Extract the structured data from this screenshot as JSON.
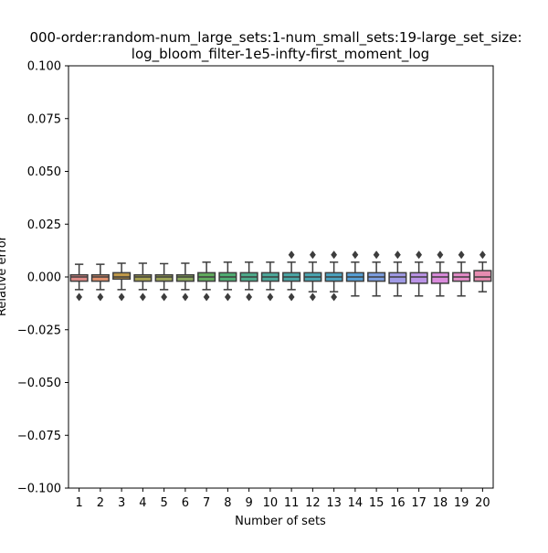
{
  "chart_data": {
    "type": "box",
    "title_line1": "000-order:random-num_large_sets:1-num_small_sets:19-large_set_size:",
    "title_line2": "log_bloom_filter-1e5-infty-first_moment_log",
    "xlabel": "Number of sets",
    "ylabel": "Relative error",
    "ylim": [
      -0.1,
      0.1
    ],
    "yticks": [
      -0.1,
      -0.075,
      -0.05,
      -0.025,
      0.0,
      0.025,
      0.05,
      0.075,
      0.1
    ],
    "ytick_labels": [
      "−0.100",
      "−0.075",
      "−0.050",
      "−0.025",
      "0.000",
      "0.025",
      "0.050",
      "0.075",
      "0.100"
    ],
    "categories": [
      "1",
      "2",
      "3",
      "4",
      "5",
      "6",
      "7",
      "8",
      "9",
      "10",
      "11",
      "12",
      "13",
      "14",
      "15",
      "16",
      "17",
      "18",
      "19",
      "20"
    ],
    "box_colors": [
      "#e08c88",
      "#e1916e",
      "#c29a49",
      "#a6a250",
      "#9ca457",
      "#8ba85d",
      "#61ac5e",
      "#4fae73",
      "#4dab8b",
      "#4ca99b",
      "#4aa7a6",
      "#4aa5b1",
      "#4ba2bf",
      "#57a0d6",
      "#7d9ee0",
      "#a09ae5",
      "#ba93e6",
      "#da8bdc",
      "#e48cc8",
      "#e68cb0"
    ],
    "line_color": "#3d3d3d",
    "boxes": [
      {
        "q1": -0.002,
        "median": 0.0,
        "q3": 0.001,
        "whislo": -0.006,
        "whishi": 0.006,
        "fliers": [
          -0.0095
        ]
      },
      {
        "q1": -0.002,
        "median": 0.0,
        "q3": 0.001,
        "whislo": -0.006,
        "whishi": 0.006,
        "fliers": [
          -0.0095
        ]
      },
      {
        "q1": -0.001,
        "median": 0.0,
        "q3": 0.002,
        "whislo": -0.006,
        "whishi": 0.0065,
        "fliers": [
          -0.0095
        ]
      },
      {
        "q1": -0.002,
        "median": 0.0,
        "q3": 0.001,
        "whislo": -0.006,
        "whishi": 0.0065,
        "fliers": [
          -0.0095
        ]
      },
      {
        "q1": -0.002,
        "median": 0.0,
        "q3": 0.001,
        "whislo": -0.006,
        "whishi": 0.0063,
        "fliers": [
          -0.0095
        ]
      },
      {
        "q1": -0.002,
        "median": 0.0,
        "q3": 0.001,
        "whislo": -0.006,
        "whishi": 0.0065,
        "fliers": [
          -0.0095
        ]
      },
      {
        "q1": -0.002,
        "median": 0.0,
        "q3": 0.002,
        "whislo": -0.006,
        "whishi": 0.007,
        "fliers": [
          -0.0095
        ]
      },
      {
        "q1": -0.002,
        "median": 0.0,
        "q3": 0.002,
        "whislo": -0.006,
        "whishi": 0.007,
        "fliers": [
          -0.0095
        ]
      },
      {
        "q1": -0.002,
        "median": 0.0,
        "q3": 0.002,
        "whislo": -0.006,
        "whishi": 0.007,
        "fliers": [
          -0.0095
        ]
      },
      {
        "q1": -0.002,
        "median": 0.0,
        "q3": 0.002,
        "whislo": -0.006,
        "whishi": 0.007,
        "fliers": [
          -0.0095
        ]
      },
      {
        "q1": -0.002,
        "median": 0.0,
        "q3": 0.002,
        "whislo": -0.006,
        "whishi": 0.007,
        "fliers": [
          -0.0095,
          0.0105
        ]
      },
      {
        "q1": -0.002,
        "median": 0.0,
        "q3": 0.002,
        "whislo": -0.007,
        "whishi": 0.007,
        "fliers": [
          -0.0095,
          0.0105
        ]
      },
      {
        "q1": -0.002,
        "median": 0.0,
        "q3": 0.002,
        "whislo": -0.007,
        "whishi": 0.007,
        "fliers": [
          -0.0095,
          0.0105
        ]
      },
      {
        "q1": -0.002,
        "median": 0.0,
        "q3": 0.002,
        "whislo": -0.009,
        "whishi": 0.007,
        "fliers": [
          0.0105
        ]
      },
      {
        "q1": -0.002,
        "median": 0.0,
        "q3": 0.002,
        "whislo": -0.009,
        "whishi": 0.007,
        "fliers": [
          0.0105
        ]
      },
      {
        "q1": -0.003,
        "median": 0.0,
        "q3": 0.002,
        "whislo": -0.009,
        "whishi": 0.007,
        "fliers": [
          0.0105
        ]
      },
      {
        "q1": -0.003,
        "median": 0.0,
        "q3": 0.002,
        "whislo": -0.009,
        "whishi": 0.007,
        "fliers": [
          0.0105
        ]
      },
      {
        "q1": -0.003,
        "median": 0.0,
        "q3": 0.002,
        "whislo": -0.009,
        "whishi": 0.007,
        "fliers": [
          0.0105
        ]
      },
      {
        "q1": -0.002,
        "median": 0.0,
        "q3": 0.002,
        "whislo": -0.009,
        "whishi": 0.007,
        "fliers": [
          0.0105
        ]
      },
      {
        "q1": -0.002,
        "median": 0.0,
        "q3": 0.003,
        "whislo": -0.007,
        "whishi": 0.007,
        "fliers": [
          0.0105
        ]
      }
    ]
  }
}
